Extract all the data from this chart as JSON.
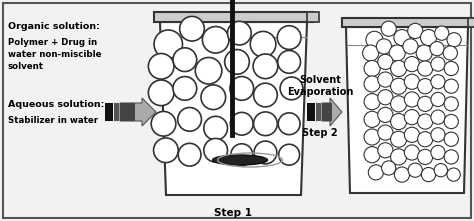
{
  "bg_color": "#f0f0f0",
  "border_color": "#555555",
  "organic_label": "Organic solution:",
  "organic_detail": "Polymer + Drug in\nwater non-miscible\nsolvent",
  "aqueous_label": "Aqueous solution:",
  "aqueous_detail": "Stabilizer in water",
  "arrow_label": "Solvent\nEvaporation",
  "step1_label": "Step 1",
  "step2_label": "Step 2",
  "beaker1_circles": [
    [
      0.355,
      0.8,
      0.03
    ],
    [
      0.405,
      0.87,
      0.026
    ],
    [
      0.455,
      0.82,
      0.028
    ],
    [
      0.505,
      0.85,
      0.025
    ],
    [
      0.555,
      0.8,
      0.027
    ],
    [
      0.61,
      0.83,
      0.025
    ],
    [
      0.34,
      0.7,
      0.027
    ],
    [
      0.39,
      0.73,
      0.025
    ],
    [
      0.44,
      0.68,
      0.028
    ],
    [
      0.5,
      0.72,
      0.026
    ],
    [
      0.56,
      0.7,
      0.026
    ],
    [
      0.61,
      0.72,
      0.024
    ],
    [
      0.34,
      0.58,
      0.027
    ],
    [
      0.39,
      0.6,
      0.025
    ],
    [
      0.45,
      0.56,
      0.026
    ],
    [
      0.51,
      0.6,
      0.025
    ],
    [
      0.56,
      0.57,
      0.025
    ],
    [
      0.615,
      0.6,
      0.024
    ],
    [
      0.345,
      0.44,
      0.026
    ],
    [
      0.4,
      0.46,
      0.025
    ],
    [
      0.455,
      0.42,
      0.025
    ],
    [
      0.51,
      0.44,
      0.024
    ],
    [
      0.56,
      0.44,
      0.025
    ],
    [
      0.61,
      0.44,
      0.023
    ],
    [
      0.35,
      0.32,
      0.026
    ],
    [
      0.4,
      0.3,
      0.024
    ],
    [
      0.455,
      0.32,
      0.025
    ],
    [
      0.51,
      0.3,
      0.023
    ],
    [
      0.56,
      0.31,
      0.024
    ],
    [
      0.61,
      0.3,
      0.022
    ]
  ],
  "beaker2_circles": [
    [
      0.79,
      0.82,
      0.018
    ],
    [
      0.82,
      0.87,
      0.016
    ],
    [
      0.848,
      0.83,
      0.017
    ],
    [
      0.876,
      0.86,
      0.016
    ],
    [
      0.904,
      0.83,
      0.017
    ],
    [
      0.932,
      0.85,
      0.015
    ],
    [
      0.958,
      0.82,
      0.015
    ],
    [
      0.782,
      0.76,
      0.017
    ],
    [
      0.81,
      0.79,
      0.016
    ],
    [
      0.838,
      0.76,
      0.017
    ],
    [
      0.866,
      0.79,
      0.016
    ],
    [
      0.895,
      0.76,
      0.017
    ],
    [
      0.922,
      0.78,
      0.015
    ],
    [
      0.95,
      0.76,
      0.015
    ],
    [
      0.785,
      0.69,
      0.017
    ],
    [
      0.813,
      0.72,
      0.016
    ],
    [
      0.841,
      0.69,
      0.017
    ],
    [
      0.869,
      0.71,
      0.016
    ],
    [
      0.897,
      0.69,
      0.016
    ],
    [
      0.924,
      0.71,
      0.015
    ],
    [
      0.952,
      0.69,
      0.015
    ],
    [
      0.785,
      0.62,
      0.017
    ],
    [
      0.813,
      0.64,
      0.016
    ],
    [
      0.841,
      0.61,
      0.017
    ],
    [
      0.869,
      0.63,
      0.016
    ],
    [
      0.897,
      0.61,
      0.016
    ],
    [
      0.924,
      0.63,
      0.015
    ],
    [
      0.952,
      0.61,
      0.015
    ],
    [
      0.785,
      0.54,
      0.017
    ],
    [
      0.813,
      0.56,
      0.016
    ],
    [
      0.841,
      0.53,
      0.017
    ],
    [
      0.869,
      0.55,
      0.016
    ],
    [
      0.897,
      0.53,
      0.016
    ],
    [
      0.924,
      0.55,
      0.015
    ],
    [
      0.952,
      0.53,
      0.015
    ],
    [
      0.785,
      0.46,
      0.017
    ],
    [
      0.813,
      0.48,
      0.016
    ],
    [
      0.841,
      0.45,
      0.017
    ],
    [
      0.869,
      0.47,
      0.016
    ],
    [
      0.897,
      0.45,
      0.016
    ],
    [
      0.924,
      0.47,
      0.015
    ],
    [
      0.952,
      0.45,
      0.015
    ],
    [
      0.785,
      0.38,
      0.017
    ],
    [
      0.813,
      0.4,
      0.016
    ],
    [
      0.841,
      0.37,
      0.017
    ],
    [
      0.869,
      0.39,
      0.016
    ],
    [
      0.897,
      0.37,
      0.016
    ],
    [
      0.924,
      0.39,
      0.015
    ],
    [
      0.952,
      0.37,
      0.015
    ],
    [
      0.785,
      0.3,
      0.017
    ],
    [
      0.813,
      0.32,
      0.016
    ],
    [
      0.841,
      0.29,
      0.017
    ],
    [
      0.869,
      0.31,
      0.016
    ],
    [
      0.897,
      0.29,
      0.016
    ],
    [
      0.924,
      0.31,
      0.015
    ],
    [
      0.952,
      0.29,
      0.015
    ],
    [
      0.793,
      0.22,
      0.016
    ],
    [
      0.82,
      0.24,
      0.015
    ],
    [
      0.848,
      0.21,
      0.016
    ],
    [
      0.876,
      0.23,
      0.015
    ],
    [
      0.904,
      0.21,
      0.015
    ],
    [
      0.93,
      0.23,
      0.014
    ],
    [
      0.957,
      0.21,
      0.014
    ]
  ]
}
